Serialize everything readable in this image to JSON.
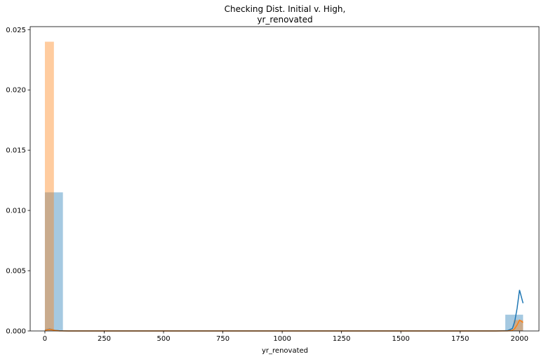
{
  "chart_data": {
    "type": "bar",
    "title": [
      "Checking Dist. Initial v. High,",
      "yr_renovated"
    ],
    "xlabel": "yr_renovated",
    "ylabel": "",
    "xlim": [
      -62,
      2082
    ],
    "ylim": [
      0,
      0.02525
    ],
    "xticks": [
      0,
      250,
      500,
      750,
      1000,
      1250,
      1500,
      1750,
      2000
    ],
    "xtick_labels": [
      "0",
      "250",
      "500",
      "750",
      "1000",
      "1250",
      "1500",
      "1750",
      "2000"
    ],
    "yticks": [
      0,
      0.005,
      0.01,
      0.015,
      0.02,
      0.025
    ],
    "ytick_labels": [
      "0.000",
      "0.005",
      "0.010",
      "0.015",
      "0.020",
      "0.025"
    ],
    "grid": false,
    "legend": "none",
    "series": [
      {
        "color": "#1f77b4",
        "hist": {
          "bins": [
            {
              "x0": 0,
              "x1": 38,
              "density": 0.0115
            },
            {
              "x0": 38,
              "x1": 76,
              "density": 0.0115
            },
            {
              "x0": 1940,
              "x1": 2015,
              "density": 0.00135
            }
          ]
        },
        "kde": {
          "x": [
            0,
            10,
            20,
            30,
            40,
            60,
            100,
            500,
            1000,
            1500,
            1900,
            1950,
            1970,
            1980,
            1990,
            2000,
            2008,
            2015
          ],
          "y": [
            5e-05,
            0.00012,
            0.00015,
            0.00012,
            6e-05,
            2e-05,
            0,
            0,
            0,
            0,
            0,
            3e-05,
            0.0002,
            0.0008,
            0.0019,
            0.0034,
            0.0028,
            0.0023
          ]
        }
      },
      {
        "color": "#ff7f0e",
        "hist": {
          "bins": [
            {
              "x0": 0,
              "x1": 38,
              "density": 0.024
            },
            {
              "x0": 1975,
              "x1": 2015,
              "density": 0.0009
            }
          ]
        },
        "kde": {
          "x": [
            0,
            10,
            20,
            30,
            40,
            60,
            100,
            500,
            1000,
            1500,
            1900,
            1950,
            1970,
            1980,
            1990,
            2000,
            2008,
            2015
          ],
          "y": [
            3e-05,
            0.0001,
            0.00012,
            0.0001,
            5e-05,
            1e-05,
            0,
            0,
            0,
            0,
            0,
            1e-05,
            5e-05,
            0.0002,
            0.0005,
            0.0009,
            0.0008,
            0.0007
          ]
        }
      }
    ]
  }
}
